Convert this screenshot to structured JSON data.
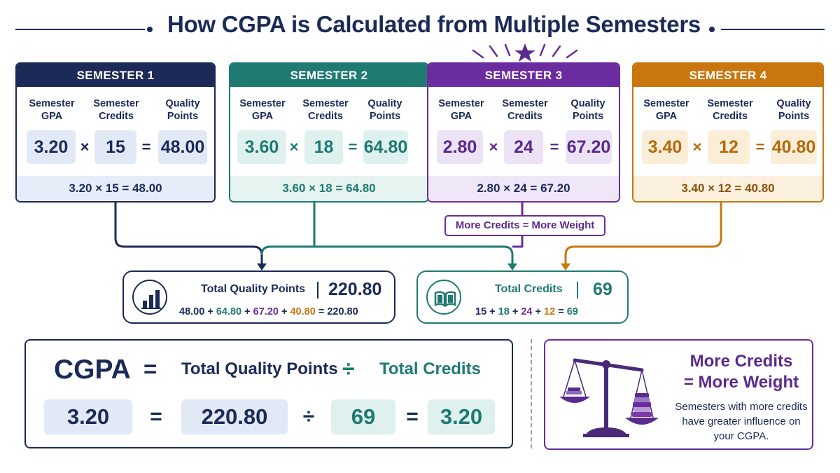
{
  "title": "How CGPA is Calculated from Multiple Semesters",
  "column_labels": {
    "gpa_1": "Semester",
    "gpa_2": "GPA",
    "credits_1": "Semester",
    "credits_2": "Credits",
    "qp_1": "Quality",
    "qp_2": "Points"
  },
  "operators": {
    "times": "×",
    "equals": "=",
    "divide": "÷"
  },
  "semesters": [
    {
      "name": "SEMESTER 1",
      "gpa": "3.20",
      "credits": "15",
      "quality_points": "48.00",
      "equation": "3.20 × 15 = 48.00",
      "color": "#1b2a57"
    },
    {
      "name": "SEMESTER 2",
      "gpa": "3.60",
      "credits": "18",
      "quality_points": "64.80",
      "equation": "3.60 × 18 = 64.80",
      "color": "#1f7a72"
    },
    {
      "name": "SEMESTER 3",
      "gpa": "2.80",
      "credits": "24",
      "quality_points": "67.20",
      "equation": "2.80 × 24 = 67.20",
      "color": "#6a2c9f"
    },
    {
      "name": "SEMESTER 4",
      "gpa": "3.40",
      "credits": "12",
      "quality_points": "40.80",
      "equation": "3.40 × 12 = 40.80",
      "color": "#c9760f"
    }
  ],
  "note": "More Credits = More Weight",
  "totals": {
    "quality_points": {
      "label": "Total Quality Points",
      "value": "220.80",
      "sum_parts": [
        "48.00",
        "+",
        "64.80",
        "+",
        "67.20",
        "+",
        "40.80",
        "=",
        "220.80"
      ],
      "icon": "bar-chart-icon"
    },
    "credits": {
      "label": "Total Credits",
      "value": "69",
      "sum_parts": [
        "15",
        "+",
        "18",
        "+",
        "24",
        "+",
        "12",
        "=",
        "69"
      ],
      "icon": "book-icon"
    }
  },
  "formula": {
    "lhs": "CGPA",
    "numerator": "Total Quality Points",
    "denominator": "Total Credits",
    "result": "3.20",
    "total_qp": "220.80",
    "total_credits": "69",
    "cgpa": "3.20"
  },
  "weight_panel": {
    "title_line1": "More Credits",
    "title_line2": "= More Weight",
    "desc_line1": "Semesters with more credits",
    "desc_line2": "have greater influence on",
    "desc_line3": "your CGPA.",
    "icon": "balance-scale-icon"
  }
}
